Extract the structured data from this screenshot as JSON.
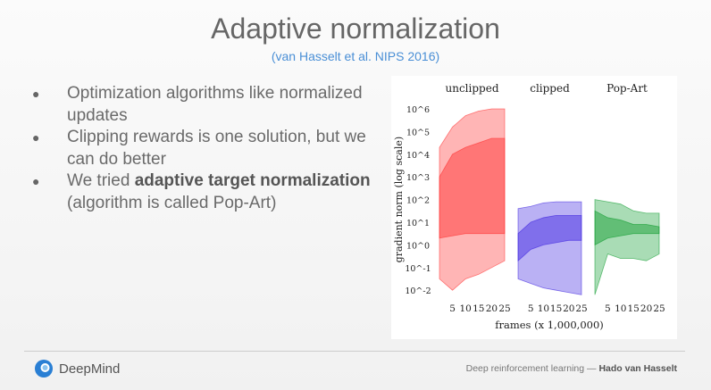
{
  "title": "Adaptive normalization",
  "subtitle": "(van Hasselt et al. NIPS 2016)",
  "bullets": [
    {
      "text": "Optimization algorithms like normalized updates"
    },
    {
      "text": "Clipping rewards is one solution, but we can do better"
    },
    {
      "pre": "We tried ",
      "bold": "adaptive target normalization",
      "post": " (algorithm is called Pop-Art)"
    }
  ],
  "footer": {
    "logo": "DeepMind",
    "credit": "Deep reinforcement learning — ",
    "author": "Hado van Hasselt"
  },
  "chart_data": {
    "type": "area",
    "ylabel": "gradient norm (log scale)",
    "xlabel": "frames (x 1,000,000)",
    "y_scale": "log",
    "ylim_log10": [
      -2.3,
      6.2
    ],
    "ytick_labels": [
      "10^6",
      "10^5",
      "10^4",
      "10^3",
      "10^2",
      "10^1",
      "10^0",
      "10^-1",
      "10^-2"
    ],
    "xticks": [
      5,
      10,
      15,
      20,
      25
    ],
    "x": [
      0,
      5,
      10,
      15,
      20,
      25
    ],
    "panels": [
      {
        "title": "unclipped",
        "color": "#ff2a2a",
        "bands_log10": [
          {
            "upper": [
              4.3,
              5.2,
              5.7,
              5.9,
              6.0,
              6.0
            ],
            "lower": [
              -1.5,
              -2,
              -1.5,
              -1.3,
              -1.0,
              -0.7
            ]
          },
          {
            "upper": [
              3,
              4,
              4.3,
              4.5,
              4.7,
              4.7
            ],
            "lower": [
              0.3,
              0.4,
              0.5,
              0.5,
              0.5,
              0.5
            ]
          }
        ]
      },
      {
        "title": "clipped",
        "color": "#3a1fe0",
        "bands_log10": [
          {
            "upper": [
              1.6,
              1.7,
              1.85,
              1.9,
              1.9,
              1.9
            ],
            "lower": [
              -1.5,
              -1.7,
              -1.9,
              -2.0,
              -2.1,
              -2.2
            ]
          },
          {
            "upper": [
              0.5,
              1.0,
              1.2,
              1.3,
              1.3,
              1.3
            ],
            "lower": [
              -0.7,
              -0.2,
              0,
              0.1,
              0.2,
              0.2
            ]
          }
        ]
      },
      {
        "title": "Pop-Art",
        "color": "#0a9a2a",
        "bands_log10": [
          {
            "upper": [
              2,
              1.9,
              1.8,
              1.5,
              1.4,
              1.4
            ],
            "lower": [
              -2.2,
              -0.4,
              -0.6,
              -0.6,
              -0.7,
              -0.4
            ]
          },
          {
            "upper": [
              1.5,
              1.2,
              1.1,
              0.9,
              0.9,
              0.8
            ],
            "lower": [
              0,
              0.3,
              0.4,
              0.5,
              0.5,
              0.5
            ]
          }
        ]
      }
    ]
  }
}
